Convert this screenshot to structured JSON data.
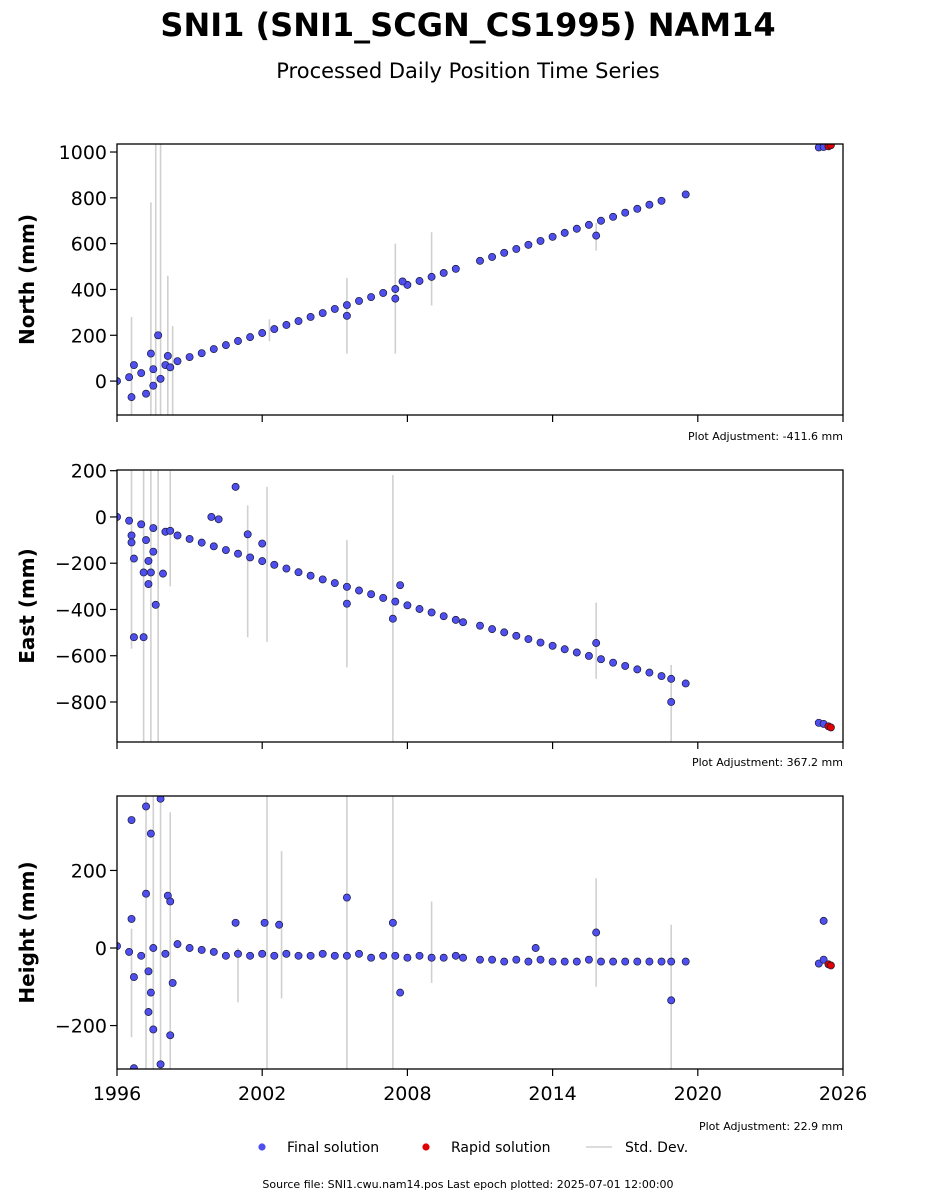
{
  "title": "SNI1 (SNI1_SCGN_CS1995) NAM14",
  "subtitle": "Processed Daily Position Time Series",
  "source": "Source file: SNI1.cwu.nam14.pos  Last epoch plotted: 2025-07-01 12:00:00",
  "chart_data": [
    {
      "type": "scatter",
      "ylabel": "North (mm)",
      "annotation": "Plot Adjustment: -411.6 mm",
      "xlim": [
        1996,
        2026
      ],
      "xticks": [
        1996,
        2002,
        2008,
        2014,
        2020,
        2026
      ],
      "xticklabels": false,
      "ylim": [
        -148,
        1035
      ],
      "yticks": [
        0,
        200,
        400,
        600,
        800,
        1000
      ],
      "series": [
        {
          "color": "#d0d0d0",
          "x": [
            1996.6,
            1997.4,
            1997.6,
            1997.8,
            1998.1,
            1998.3,
            2002.3,
            2005.5,
            2007.5,
            2009.0,
            2015.8
          ],
          "y": [
            65,
            315,
            440,
            440,
            155,
            45,
            222,
            285,
            360,
            490,
            630
          ],
          "errors": [
            215,
            465,
            600,
            600,
            305,
            195,
            48,
            165,
            240,
            160,
            60
          ]
        },
        {
          "color": "#4f4ff0",
          "x": [
            1996.0,
            1996.5,
            1997.0,
            1997.5,
            1998.0,
            1998.5,
            1999.0,
            1999.5,
            2000.0,
            2000.5,
            2001.0,
            2001.5,
            2002.0,
            2002.5,
            2003.0,
            2003.5,
            2004.0,
            2004.5,
            2005.0,
            2005.5,
            2006.0,
            2006.5,
            2007.0,
            2007.5,
            2008.0,
            2008.5,
            2009.0,
            2009.5,
            2010.0,
            2011.0,
            2011.5,
            2012.0,
            2012.5,
            2013.0,
            2013.5,
            2014.0,
            2014.5,
            2015.0,
            2015.5,
            2016.0,
            2016.5,
            2017.0,
            2017.5,
            2018.0,
            2018.5,
            2019.5,
            2025.0,
            2025.2,
            1996.6,
            1996.7,
            1997.2,
            1997.4,
            1997.5,
            1997.7,
            1997.8,
            1998.1,
            1998.2,
            2005.5,
            2007.5,
            2007.8,
            2015.8
          ],
          "y": [
            0,
            17,
            35,
            52,
            70,
            87,
            105,
            122,
            140,
            157,
            175,
            192,
            210,
            227,
            245,
            262,
            280,
            297,
            315,
            332,
            350,
            367,
            385,
            402,
            420,
            437,
            455,
            472,
            490,
            525,
            542,
            560,
            577,
            595,
            612,
            630,
            647,
            665,
            682,
            700,
            717,
            735,
            752,
            770,
            787,
            815,
            1020,
            1022,
            -70,
            70,
            -55,
            120,
            -20,
            200,
            10,
            110,
            60,
            285,
            360,
            435,
            635
          ]
        },
        {
          "color": "#e00000",
          "x": [
            2025.4,
            2025.5
          ],
          "y": [
            1025,
            1030
          ]
        }
      ]
    },
    {
      "type": "scatter",
      "ylabel": "East (mm)",
      "annotation": "Plot Adjustment: 367.2 mm",
      "xlim": [
        1996,
        2026
      ],
      "xticks": [
        1996,
        2002,
        2008,
        2014,
        2020,
        2026
      ],
      "xticklabels": false,
      "ylim": [
        -973,
        203
      ],
      "yticks": [
        {
          "value": -800,
          "label": "−800"
        },
        {
          "value": -600,
          "label": "−600"
        },
        {
          "value": -400,
          "label": "−400"
        },
        {
          "value": -200,
          "label": "−200"
        },
        0,
        200
      ],
      "series": [
        {
          "color": "#d0d0d0",
          "x": [
            1996.6,
            1997.1,
            1997.4,
            1997.7,
            1998.2,
            2001.4,
            2002.2,
            2005.5,
            2007.4,
            2015.8,
            2018.9
          ],
          "y": [
            -183,
            -385,
            -385,
            -385,
            -50,
            -235,
            -205,
            -375,
            -396,
            -535,
            -806
          ],
          "errors": [
            387,
            588,
            588,
            588,
            250,
            285,
            335,
            275,
            577,
            165,
            166
          ]
        },
        {
          "color": "#4f4ff0",
          "x": [
            1996.0,
            1996.5,
            1997.0,
            1997.5,
            1998.0,
            1998.5,
            1999.0,
            1999.5,
            2000.0,
            2000.5,
            2001.0,
            2001.5,
            2002.0,
            2002.5,
            2003.0,
            2003.5,
            2004.0,
            2004.5,
            2005.0,
            2005.5,
            2006.0,
            2006.5,
            2007.0,
            2007.5,
            2008.0,
            2008.5,
            2009.0,
            2009.5,
            2010.0,
            2010.3,
            2011.0,
            2011.5,
            2012.0,
            2012.5,
            2013.0,
            2013.5,
            2014.0,
            2014.5,
            2015.0,
            2015.5,
            2016.0,
            2016.5,
            2017.0,
            2017.5,
            2018.0,
            2018.5,
            2018.9,
            2019.5,
            2025.0,
            2025.2,
            1996.6,
            1996.6,
            1996.7,
            1996.7,
            1997.1,
            1997.1,
            1997.2,
            1997.3,
            1997.3,
            1997.4,
            1997.5,
            1997.6,
            1997.9,
            1998.2,
            1999.9,
            2000.2,
            2000.9,
            2001.4,
            2002.0,
            2005.5,
            2007.4,
            2007.7,
            2015.8,
            2018.9
          ],
          "y": [
            0,
            -16,
            -32,
            -48,
            -64,
            -80,
            -95,
            -111,
            -127,
            -143,
            -159,
            -175,
            -191,
            -207,
            -223,
            -239,
            -254,
            -270,
            -286,
            -302,
            -318,
            -334,
            -350,
            -366,
            -382,
            -398,
            -413,
            -429,
            -445,
            -455,
            -470,
            -485,
            -499,
            -514,
            -528,
            -543,
            -557,
            -572,
            -586,
            -601,
            -615,
            -630,
            -644,
            -659,
            -673,
            -688,
            -700,
            -720,
            -890,
            -895,
            -80,
            -110,
            -180,
            -520,
            -520,
            -240,
            -100,
            -290,
            -190,
            -240,
            -150,
            -380,
            -245,
            -60,
            0,
            -10,
            130,
            -75,
            -115,
            -375,
            -440,
            -295,
            -545,
            -800
          ]
        },
        {
          "color": "#e00000",
          "x": [
            2025.4,
            2025.5
          ],
          "y": [
            -905,
            -910
          ]
        }
      ]
    },
    {
      "type": "scatter",
      "ylabel": "Height (mm)",
      "annotation": "Plot Adjustment: 22.9 mm",
      "xlim": [
        1996,
        2026
      ],
      "xticks": [
        1996,
        2002,
        2008,
        2014,
        2020,
        2026
      ],
      "xticklabels": true,
      "ylim": [
        -312,
        392
      ],
      "yticks": [
        {
          "value": -200,
          "label": "−200"
        },
        0,
        200
      ],
      "series": [
        {
          "name": "Std. Dev.",
          "color": "#d0d0d0",
          "x": [
            1996.6,
            1997.2,
            1997.5,
            1997.8,
            1998.2,
            2001.0,
            2002.2,
            2002.8,
            2005.5,
            2007.4,
            2009.0,
            2015.8,
            2018.9
          ],
          "y": [
            -90,
            40,
            40,
            40,
            19,
            -70,
            40,
            60,
            40,
            40,
            15,
            40,
            -126
          ],
          "errors": [
            140,
            352,
            352,
            352,
            331,
            70,
            352,
            190,
            352,
            352,
            105,
            140,
            186
          ]
        },
        {
          "name": "Final solution",
          "color": "#4f4ff0",
          "x": [
            1996.0,
            1996.5,
            1997.0,
            1997.5,
            1998.0,
            1998.5,
            1999.0,
            1999.5,
            2000.0,
            2000.5,
            2001.0,
            2001.5,
            2002.0,
            2002.5,
            2003.0,
            2003.5,
            2004.0,
            2004.5,
            2005.0,
            2005.5,
            2006.0,
            2006.5,
            2007.0,
            2007.5,
            2008.0,
            2008.5,
            2009.0,
            2009.5,
            2010.0,
            2010.3,
            2011.0,
            2011.5,
            2012.0,
            2012.5,
            2013.0,
            2013.5,
            2014.0,
            2014.5,
            2015.0,
            2015.5,
            2016.0,
            2016.5,
            2017.0,
            2017.5,
            2018.0,
            2018.5,
            2018.9,
            2019.5,
            2025.0,
            2025.2,
            1996.6,
            1996.6,
            1996.7,
            1996.7,
            1997.2,
            1997.2,
            1997.3,
            1997.3,
            1997.4,
            1997.4,
            1997.5,
            1997.8,
            1997.8,
            1998.1,
            1998.2,
            1998.2,
            1998.3,
            2000.9,
            2002.1,
            2002.7,
            2005.5,
            2007.4,
            2007.7,
            2013.3,
            2015.8,
            2018.9,
            2025.2
          ],
          "y": [
            5,
            -10,
            -20,
            0,
            -15,
            10,
            0,
            -5,
            -10,
            -20,
            -15,
            -20,
            -15,
            -20,
            -15,
            -20,
            -20,
            -15,
            -20,
            -20,
            -15,
            -25,
            -20,
            -20,
            -25,
            -20,
            -25,
            -25,
            -20,
            -25,
            -30,
            -30,
            -35,
            -30,
            -35,
            -30,
            -35,
            -35,
            -35,
            -30,
            -35,
            -35,
            -35,
            -35,
            -35,
            -35,
            -35,
            -35,
            -40,
            -30,
            330,
            75,
            -75,
            -310,
            365,
            140,
            -165,
            -60,
            295,
            -115,
            -210,
            385,
            -300,
            135,
            120,
            -225,
            -90,
            65,
            65,
            60,
            130,
            65,
            -115,
            0,
            40,
            -135,
            70
          ]
        },
        {
          "name": "Rapid solution",
          "color": "#e00000",
          "x": [
            2025.4,
            2025.5
          ],
          "y": [
            -42,
            -45
          ]
        }
      ]
    }
  ]
}
